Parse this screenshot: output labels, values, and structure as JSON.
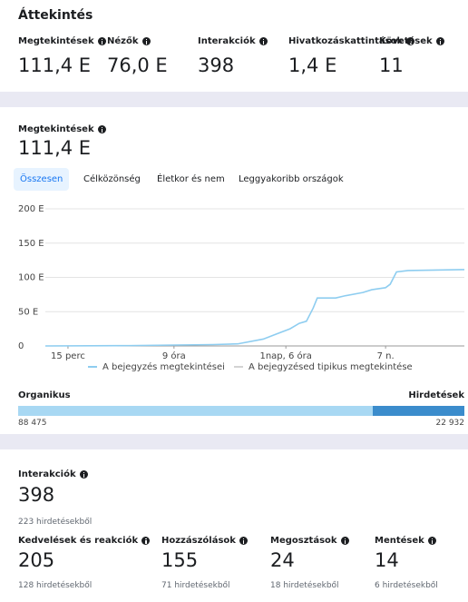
{
  "overview": {
    "title": "Áttekintés",
    "metrics": [
      {
        "label": "Megtekintések",
        "value": "111,4 E"
      },
      {
        "label": "Nézők",
        "value": "76,0 E"
      },
      {
        "label": "Interakciók",
        "value": "398"
      },
      {
        "label": "Hivatkozáskattintások",
        "value": "1,4 E"
      },
      {
        "label": "Követések",
        "value": "11"
      }
    ]
  },
  "views": {
    "label": "Megtekintések",
    "value": "111,4 E",
    "tabs": [
      "Összesen",
      "Célközönség",
      "Életkor és nem",
      "Leggyakoribb országok"
    ],
    "selected_tab": 0
  },
  "chart_data": {
    "type": "line",
    "x": [
      0,
      20,
      40,
      45.9,
      52,
      55,
      58.4,
      60.6,
      62.3,
      63.9,
      64.9,
      69.3,
      71.4,
      75.8,
      77.9,
      81.2,
      82.3,
      83.8,
      86.6,
      100
    ],
    "series": [
      {
        "name": "A bejegyzés megtekintései",
        "color": "#8ecdf0",
        "values": [
          0,
          0.5,
          2,
          3,
          10,
          17,
          25,
          33,
          36,
          55,
          70,
          70,
          73,
          78,
          82,
          85,
          90,
          108,
          110,
          111.4
        ]
      },
      {
        "name": "A bejegyzésed tipikus megtekintése",
        "color": "#d3d3d3",
        "values": [
          null,
          null,
          null,
          null,
          null,
          null,
          null,
          null,
          null,
          null,
          null,
          null,
          null,
          null,
          null,
          null,
          null,
          null,
          null,
          null
        ]
      }
    ],
    "xlim": [
      0,
      100
    ],
    "xticks": [
      {
        "value": 5.4,
        "label": "15 perc"
      },
      {
        "value": 30.7,
        "label": "9 óra"
      },
      {
        "value": 57.4,
        "label": "1nap, 6 óra"
      },
      {
        "value": 81.2,
        "label": "7 n."
      }
    ],
    "ylim": [
      0,
      200
    ],
    "yticks": [
      0,
      {
        "value": 50,
        "label": "50 E"
      },
      {
        "value": 100,
        "label": "100 E"
      },
      {
        "value": 150,
        "label": "150 E"
      },
      {
        "value": 200,
        "label": "200 E"
      }
    ],
    "grid": true
  },
  "split": {
    "labels": [
      "Organikus",
      "Hirdetések"
    ],
    "values": [
      88475,
      22932
    ],
    "value_labels": [
      "88 475",
      "22 932"
    ],
    "colors": [
      "#a8d8f3",
      "#3b8ccc"
    ]
  },
  "interactions": {
    "label": "Interakciók",
    "value": "398",
    "sub": "223 hirdetésekből",
    "metrics": [
      {
        "label": "Kedvelések és reakciók",
        "value": "205",
        "sub": "128 hirdetésekből"
      },
      {
        "label": "Hozzászólások",
        "value": "155",
        "sub": "71 hirdetésekből"
      },
      {
        "label": "Megosztások",
        "value": "24",
        "sub": "18 hirdetésekből"
      },
      {
        "label": "Mentések",
        "value": "14",
        "sub": "6 hirdetésekből"
      }
    ]
  }
}
